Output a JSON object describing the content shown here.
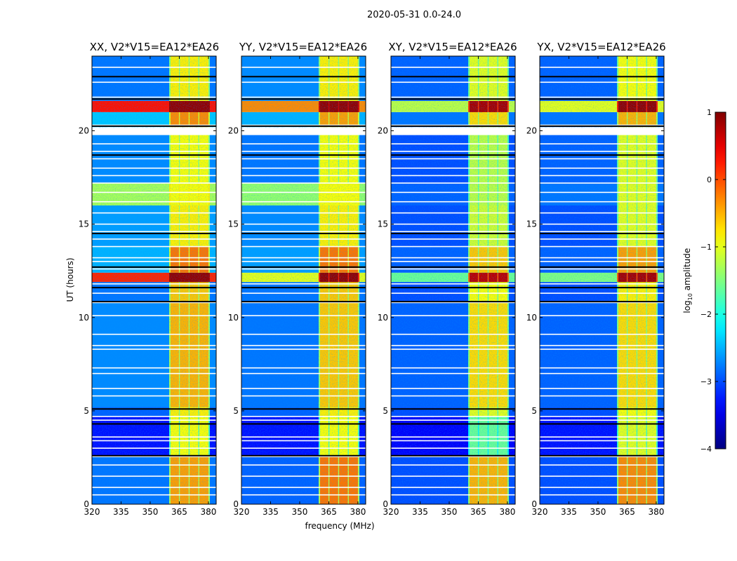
{
  "suptitle": "2020-05-31 0.0-24.0",
  "xlabel": "frequency (MHz)",
  "ylabel": "UT (hours)",
  "colorbar": {
    "label_prefix": "log",
    "label_sub": "10",
    "label_suffix": " amplitude",
    "ticks": [
      "1",
      "0",
      "−1",
      "−2",
      "−3",
      "−4"
    ],
    "tick_values": [
      1,
      0,
      -1,
      -2,
      -3,
      -4
    ],
    "range": [
      -4,
      1
    ],
    "colormap": "jet"
  },
  "chart_data": {
    "type": "heatmap",
    "xlim": [
      320,
      384
    ],
    "ylim": [
      0,
      24
    ],
    "xticks": [
      320,
      335,
      350,
      365,
      380
    ],
    "xtick_labels": [
      "320",
      "335",
      "350",
      "365",
      "380"
    ],
    "yticks": [
      0,
      5,
      10,
      15,
      20
    ],
    "ytick_labels": [
      "0",
      "5",
      "10",
      "15",
      "20"
    ],
    "rfi_columns_mhz": [
      [
        360.5,
        364.8
      ],
      [
        365.3,
        369.8
      ],
      [
        370.3,
        374.8
      ],
      [
        375.3,
        380
      ]
    ],
    "flag_gaps_hours": [
      0.5,
      0.9,
      1.5,
      2.1,
      2.55,
      3.0,
      3.4,
      3.6,
      4.5,
      4.7,
      5.8,
      6.2,
      7.0,
      7.3,
      8.3,
      8.5,
      9.1,
      10.1,
      10.8,
      11.3,
      11.8,
      12.6,
      13.0,
      13.2,
      13.8,
      14.2,
      14.6,
      15.0,
      15.6,
      16.2,
      16.7,
      17.2,
      17.6,
      18.0,
      18.5,
      18.9,
      19.3,
      19.8,
      19.9,
      20.0,
      20.3,
      21.8,
      22.6,
      23.4
    ],
    "dark_lines_hours": [
      2.6,
      4.3,
      5.1,
      10.85,
      11.6,
      12.7,
      14.5,
      18.7,
      20.25,
      21.7,
      22.9
    ],
    "panels": [
      {
        "title": "XX, V2*V15=EA12*EA26",
        "bands": [
          [
            0,
            2.55,
            -2.8,
            -0.4
          ],
          [
            2.55,
            4.7,
            -3.3,
            -0.9
          ],
          [
            4.7,
            5.2,
            -2.9,
            -0.8
          ],
          [
            5.2,
            10.8,
            -2.7,
            -0.5
          ],
          [
            10.8,
            11.9,
            -2.8,
            -0.6
          ],
          [
            11.9,
            12.4,
            0.2,
            0.9
          ],
          [
            12.4,
            13.8,
            -2.5,
            -0.2
          ],
          [
            13.8,
            16,
            -2.6,
            -0.8
          ],
          [
            16,
            17.2,
            -1.3,
            -0.9
          ],
          [
            17.2,
            19.8,
            -2.7,
            -0.9
          ],
          [
            20.2,
            21,
            -2.4,
            -0.3
          ],
          [
            21,
            21.6,
            0.3,
            0.9
          ],
          [
            21.6,
            24,
            -2.8,
            -0.8
          ]
        ]
      },
      {
        "title": "YY, V2*V15=EA12*EA26",
        "bands": [
          [
            0,
            2.55,
            -2.9,
            -0.2
          ],
          [
            2.55,
            4.7,
            -3.3,
            -0.9
          ],
          [
            4.7,
            5.2,
            -2.9,
            -0.8
          ],
          [
            5.2,
            10.8,
            -2.8,
            -0.6
          ],
          [
            10.8,
            11.9,
            -2.8,
            -0.6
          ],
          [
            11.9,
            12.4,
            -1.0,
            0.9
          ],
          [
            12.4,
            13.8,
            -2.6,
            -0.2
          ],
          [
            13.8,
            16,
            -2.7,
            -0.8
          ],
          [
            16,
            17.2,
            -1.4,
            -0.9
          ],
          [
            17.2,
            19.8,
            -2.8,
            -0.9
          ],
          [
            20.2,
            21,
            -2.5,
            -0.4
          ],
          [
            21,
            21.6,
            -0.3,
            0.9
          ],
          [
            21.6,
            24,
            -2.7,
            -0.8
          ]
        ]
      },
      {
        "title": "XY, V2*V15=EA12*EA26",
        "bands": [
          [
            0,
            2.55,
            -3.0,
            -0.5
          ],
          [
            2.55,
            4.7,
            -3.4,
            -1.6
          ],
          [
            4.7,
            5.2,
            -3.0,
            -1.0
          ],
          [
            5.2,
            10.8,
            -2.9,
            -0.7
          ],
          [
            10.8,
            11.9,
            -3.0,
            -0.9
          ],
          [
            11.9,
            12.4,
            -1.6,
            0.7
          ],
          [
            12.4,
            13.8,
            -2.9,
            -0.6
          ],
          [
            13.8,
            16,
            -3.0,
            -1.1
          ],
          [
            16,
            17.2,
            -2.9,
            -1.2
          ],
          [
            17.2,
            19.8,
            -3.0,
            -1.2
          ],
          [
            20.2,
            21,
            -2.8,
            -0.7
          ],
          [
            21,
            21.6,
            -1.2,
            0.8
          ],
          [
            21.6,
            24,
            -2.9,
            -1.0
          ]
        ]
      },
      {
        "title": "YX, V2*V15=EA12*EA26",
        "bands": [
          [
            0,
            2.55,
            -3.0,
            -0.3
          ],
          [
            2.55,
            4.7,
            -3.3,
            -1.0
          ],
          [
            4.7,
            5.2,
            -3.0,
            -0.9
          ],
          [
            5.2,
            10.8,
            -2.9,
            -0.7
          ],
          [
            10.8,
            11.9,
            -3.0,
            -0.8
          ],
          [
            11.9,
            12.4,
            -1.5,
            0.8
          ],
          [
            12.4,
            13.8,
            -2.9,
            -0.4
          ],
          [
            13.8,
            16,
            -3.0,
            -1.0
          ],
          [
            16,
            17.2,
            -2.8,
            -1.0
          ],
          [
            17.2,
            19.8,
            -2.9,
            -1.0
          ],
          [
            20.2,
            21,
            -2.8,
            -0.5
          ],
          [
            21,
            21.6,
            -1.0,
            0.9
          ],
          [
            21.6,
            24,
            -2.9,
            -0.9
          ]
        ]
      }
    ]
  }
}
